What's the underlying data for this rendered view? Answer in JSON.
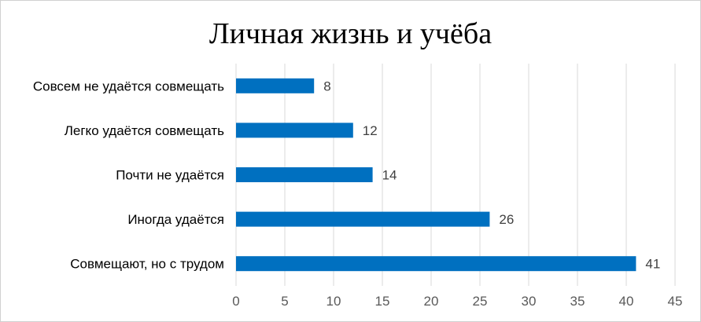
{
  "chart_data": {
    "type": "bar",
    "orientation": "horizontal",
    "title": "Личная жизнь и учёба",
    "categories": [
      "Совсем не удаётся совмещать",
      "Легко удаётся совмещать",
      "Почти не удаётся",
      "Иногда удаётся",
      "Совмещают, но с трудом"
    ],
    "values": [
      8,
      12,
      14,
      26,
      41
    ],
    "xlim": [
      0,
      45
    ],
    "xticks": [
      0,
      5,
      10,
      15,
      20,
      25,
      30,
      35,
      40,
      45
    ],
    "grid": true,
    "legend": "none",
    "colors": {
      "bar": "#0070c0",
      "grid": "#d9d9d9"
    }
  }
}
